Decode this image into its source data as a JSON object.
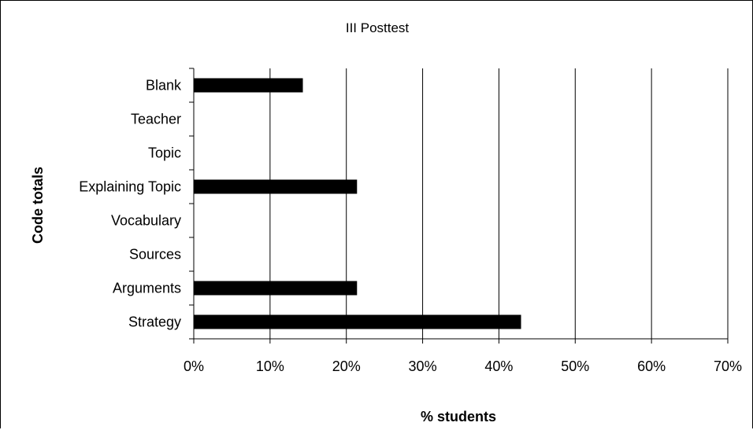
{
  "chart_data": {
    "type": "bar",
    "orientation": "horizontal",
    "title": "III Posttest",
    "xlabel": "% students",
    "ylabel": "Code totals",
    "categories": [
      "Blank",
      "Teacher",
      "Topic",
      "Explaining Topic",
      "Vocabulary",
      "Sources",
      "Arguments",
      "Strategy"
    ],
    "values": [
      14.3,
      0,
      0,
      21.4,
      0,
      0,
      21.4,
      42.9
    ],
    "xlim": [
      0,
      70
    ],
    "xticks": [
      "0%",
      "10%",
      "20%",
      "30%",
      "40%",
      "50%",
      "60%",
      "70%"
    ],
    "x_grid": true,
    "legend": "none",
    "bar_color": "#000000"
  }
}
